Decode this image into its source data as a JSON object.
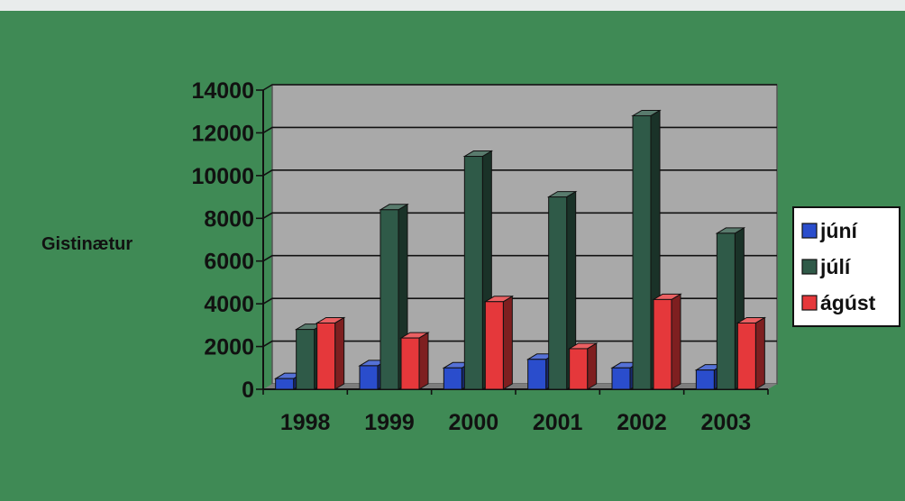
{
  "chart_data": {
    "type": "bar",
    "title": "",
    "xlabel": "",
    "ylabel": "Gistinætur",
    "categories": [
      "1998",
      "1999",
      "2000",
      "2001",
      "2002",
      "2003"
    ],
    "series": [
      {
        "name": "júní",
        "values": [
          500,
          1100,
          1000,
          1400,
          1000,
          900
        ]
      },
      {
        "name": "júlí",
        "values": [
          2800,
          8400,
          10900,
          9000,
          12800,
          7300
        ]
      },
      {
        "name": "ágúst",
        "values": [
          3100,
          2400,
          4100,
          1900,
          4200,
          3100
        ]
      }
    ],
    "ylim": [
      0,
      14000
    ],
    "yticks": [
      "0",
      "2000",
      "4000",
      "6000",
      "8000",
      "10000",
      "12000",
      "14000"
    ],
    "grid": true,
    "legend_position": "right",
    "colors": {
      "series": [
        "#2a4dcc",
        "#2f5a48",
        "#e5383b"
      ],
      "plot_background": "#a9a9a9",
      "slide_background": "#3f8a55",
      "legend_background": "#ffffff"
    }
  }
}
